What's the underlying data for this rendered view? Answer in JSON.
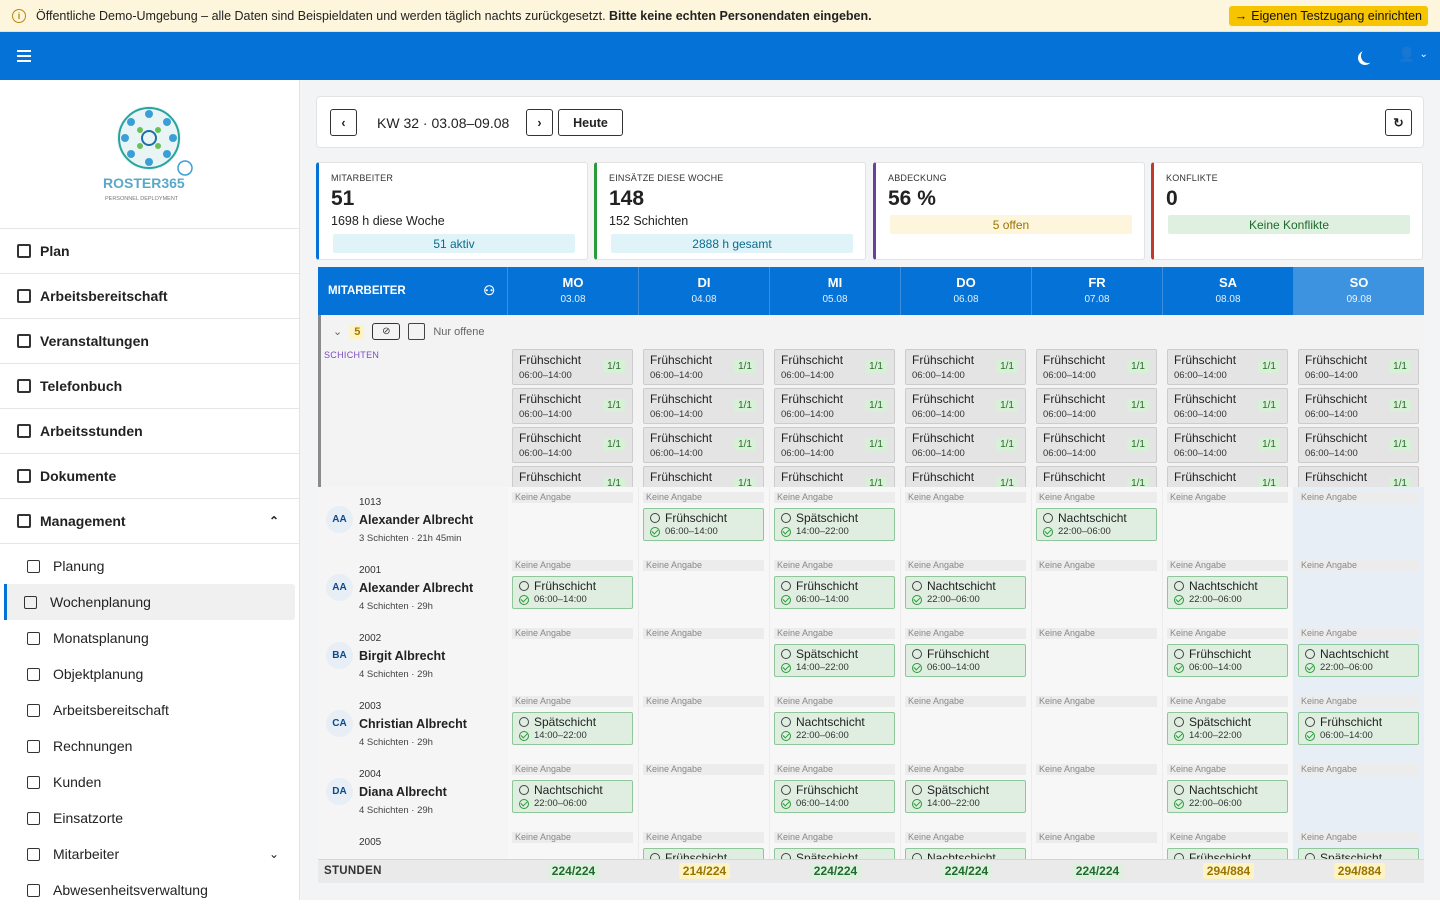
{
  "banner": {
    "text_normal": "Öffentliche Demo-Umgebung",
    "text_rest": " – alle Daten sind Beispieldaten und werden täglich nachts zurückgesetzt. ",
    "text_bold": "Bitte keine echten Personendaten eingeben.",
    "cta": "Eigenen Testzugang einrichten",
    "info_icon": "i"
  },
  "logo": {
    "name": "ROSTER365",
    "tagline": "PERSONNEL DEPLOYMENT"
  },
  "nav": {
    "main": [
      {
        "label": "Plan",
        "icon": "calendar-check-icon"
      },
      {
        "label": "Arbeitsbereitschaft",
        "icon": "calendar-plus-icon"
      },
      {
        "label": "Veranstaltungen",
        "icon": "calendar-event-icon"
      },
      {
        "label": "Telefonbuch",
        "icon": "phone-icon"
      },
      {
        "label": "Arbeitsstunden",
        "icon": "calendar-clock-icon"
      },
      {
        "label": "Dokumente",
        "icon": "documents-icon"
      },
      {
        "label": "Management",
        "icon": "users-gear-icon",
        "expanded": true
      }
    ],
    "sub": [
      {
        "label": "Planung",
        "icon": "calendar-clipboard-icon"
      },
      {
        "label": "Wochenplanung",
        "icon": "table-week-icon",
        "active": true
      },
      {
        "label": "Monatsplanung",
        "icon": "table-grid-icon"
      },
      {
        "label": "Objektplanung",
        "icon": "building-icon"
      },
      {
        "label": "Arbeitsbereitschaft",
        "icon": "user-pen-icon"
      },
      {
        "label": "Rechnungen",
        "icon": "receipt-icon"
      },
      {
        "label": "Kunden",
        "icon": "briefcase-icon"
      },
      {
        "label": "Einsatzorte",
        "icon": "location-pin-icon"
      },
      {
        "label": "Mitarbeiter",
        "icon": "users-icon",
        "has_children": true
      },
      {
        "label": "Abwesenheitsverwaltung",
        "icon": "calendar-x-icon"
      }
    ]
  },
  "toolbar": {
    "prev": "‹",
    "next": "›",
    "week_label": "KW 32 · 03.08–09.08",
    "today": "Heute",
    "refresh_icon": "↻"
  },
  "stats": [
    {
      "label": "Mitarbeiter",
      "value": "51",
      "sub": "1698 h diese Woche",
      "pill": "51 aktiv",
      "color": "#0472d6",
      "pill_bg": "#e0f3f8",
      "pill_fg": "#0a6c8c"
    },
    {
      "label": "Einsätze diese Woche",
      "value": "148",
      "sub": "152 Schichten",
      "pill": "2888 h gesamt",
      "color": "#2a9a3a",
      "pill_bg": "#e0f3f8",
      "pill_fg": "#0a6c8c"
    },
    {
      "label": "Abdeckung",
      "value": "56 %",
      "sub": "",
      "pill": "5 offen",
      "color": "#6b3fa0",
      "pill_bg": "#fdf6dc",
      "pill_fg": "#9a7400"
    },
    {
      "label": "Konflikte",
      "value": "0",
      "sub": "",
      "pill": "Keine Konflikte",
      "color": "#c0392b",
      "pill_bg": "#dff0e0",
      "pill_fg": "#1e6b2c"
    }
  ],
  "grid": {
    "employee_header": "MITARBEITER",
    "days": [
      {
        "d": "MO",
        "date": "03.08"
      },
      {
        "d": "DI",
        "date": "04.08"
      },
      {
        "d": "MI",
        "date": "05.08"
      },
      {
        "d": "DO",
        "date": "06.08"
      },
      {
        "d": "FR",
        "date": "07.08"
      },
      {
        "d": "SA",
        "date": "08.08"
      },
      {
        "d": "SO",
        "date": "09.08"
      }
    ],
    "open": {
      "count": "5",
      "filter_label": "Nur offene",
      "section_label": "SCHICHTEN",
      "card_name": "Frühschicht",
      "card_time": "06:00–14:00",
      "card_quota": "1/1"
    },
    "no_info": "Keine Angabe",
    "employees": [
      {
        "id": "1013",
        "initials": "AA",
        "name": "Alexander Albrecht",
        "meta": "3 Schichten · 21h 45min",
        "shifts": [
          null,
          [
            "Frühschicht",
            "06:00–14:00"
          ],
          [
            "Spätschicht",
            "14:00–22:00"
          ],
          null,
          [
            "Nachtschicht",
            "22:00–06:00"
          ],
          null,
          null
        ]
      },
      {
        "id": "2001",
        "initials": "AA",
        "name": "Alexander Albrecht",
        "meta": "4 Schichten · 29h",
        "shifts": [
          [
            "Frühschicht",
            "06:00–14:00"
          ],
          null,
          [
            "Frühschicht",
            "06:00–14:00"
          ],
          [
            "Nachtschicht",
            "22:00–06:00"
          ],
          null,
          [
            "Nachtschicht",
            "22:00–06:00"
          ],
          null
        ]
      },
      {
        "id": "2002",
        "initials": "BA",
        "name": "Birgit Albrecht",
        "meta": "4 Schichten · 29h",
        "shifts": [
          null,
          null,
          [
            "Spätschicht",
            "14:00–22:00"
          ],
          [
            "Frühschicht",
            "06:00–14:00"
          ],
          null,
          [
            "Frühschicht",
            "06:00–14:00"
          ],
          [
            "Nachtschicht",
            "22:00–06:00"
          ]
        ]
      },
      {
        "id": "2003",
        "initials": "CA",
        "name": "Christian Albrecht",
        "meta": "4 Schichten · 29h",
        "shifts": [
          [
            "Spätschicht",
            "14:00–22:00"
          ],
          null,
          [
            "Nachtschicht",
            "22:00–06:00"
          ],
          null,
          null,
          [
            "Spätschicht",
            "14:00–22:00"
          ],
          [
            "Frühschicht",
            "06:00–14:00"
          ]
        ]
      },
      {
        "id": "2004",
        "initials": "DA",
        "name": "Diana Albrecht",
        "meta": "4 Schichten · 29h",
        "shifts": [
          [
            "Nachtschicht",
            "22:00–06:00"
          ],
          null,
          [
            "Frühschicht",
            "06:00–14:00"
          ],
          [
            "Spätschicht",
            "14:00–22:00"
          ],
          null,
          [
            "Nachtschicht",
            "22:00–06:00"
          ],
          null
        ]
      },
      {
        "id": "2005",
        "initials": "",
        "name": "",
        "meta": "",
        "shifts": [
          null,
          [
            "Frühschicht",
            ""
          ],
          [
            "Spätschicht",
            ""
          ],
          [
            "Nachtschicht",
            ""
          ],
          null,
          [
            "Frühschicht",
            ""
          ],
          [
            "Spätschicht",
            ""
          ]
        ]
      }
    ],
    "footer_label": "STUNDEN",
    "hours": [
      {
        "v": "224/224",
        "status": "ok"
      },
      {
        "v": "214/224",
        "status": "warn"
      },
      {
        "v": "224/224",
        "status": "ok"
      },
      {
        "v": "224/224",
        "status": "ok"
      },
      {
        "v": "224/224",
        "status": "ok"
      },
      {
        "v": "294/884",
        "status": "warn"
      },
      {
        "v": "294/884",
        "status": "warn"
      }
    ]
  }
}
